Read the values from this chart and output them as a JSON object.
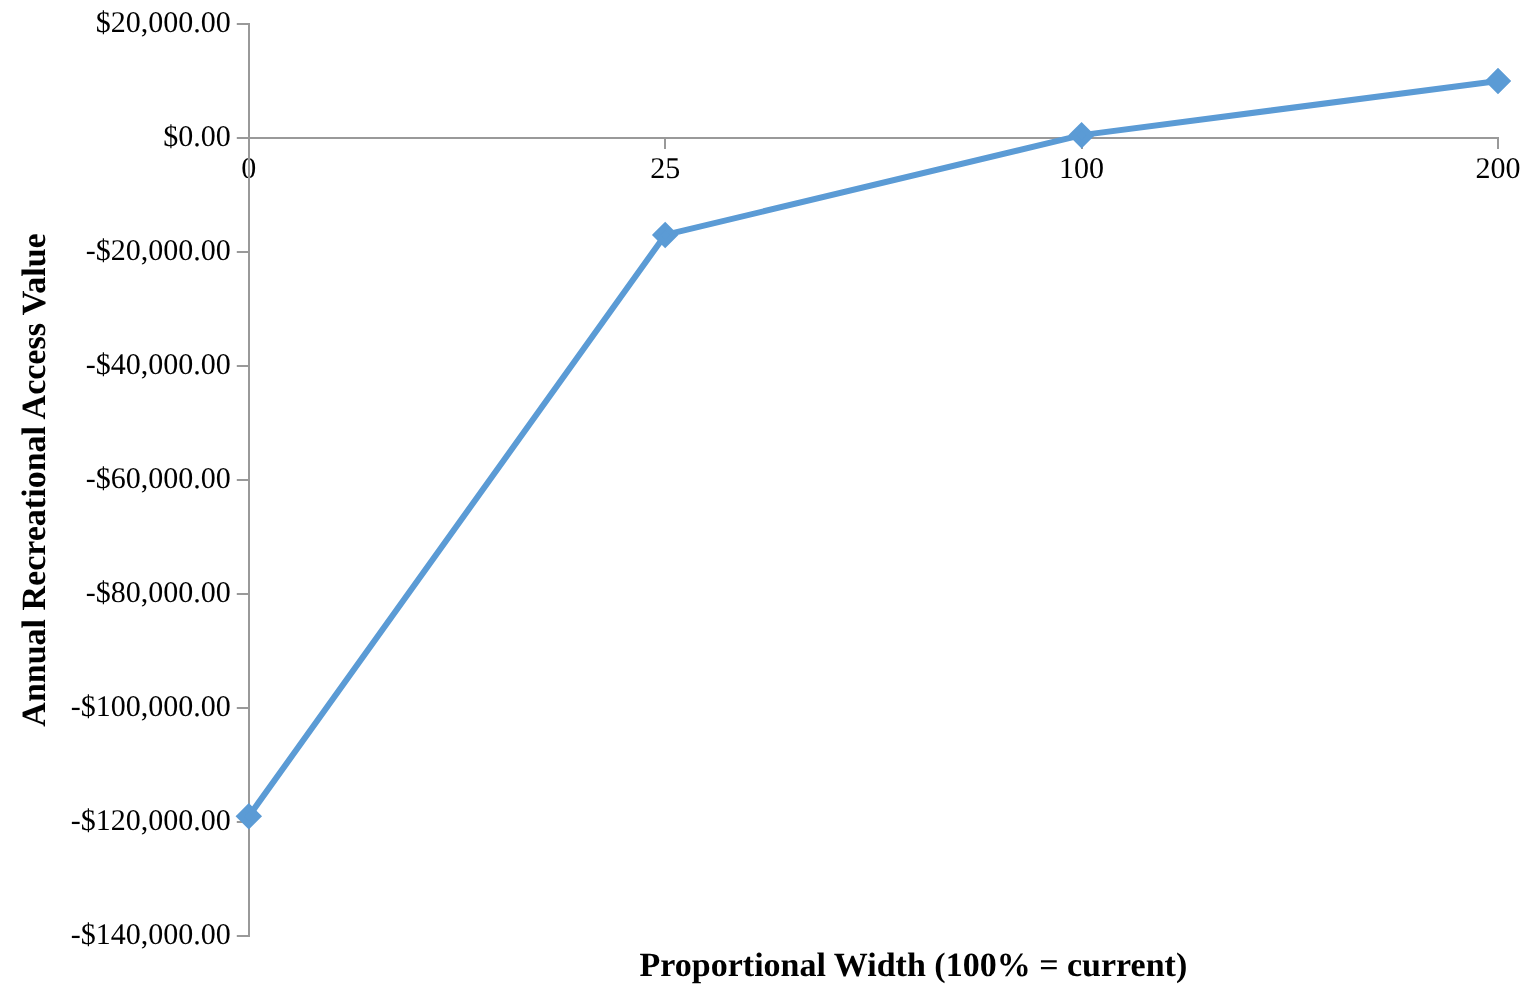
{
  "chart_data": {
    "type": "line",
    "xlabel": "Proportional Width (100% = current)",
    "ylabel": "Annual Recreational Access Value",
    "categories": [
      "0",
      "25",
      "100",
      "200"
    ],
    "series": [
      {
        "color": "#5b9bd5",
        "values": [
          -119000,
          -17000,
          500,
          10000
        ]
      }
    ],
    "ylim": [
      -140000,
      20000
    ],
    "yticks": [
      {
        "value": -140000,
        "label": "-$140,000.00"
      },
      {
        "value": -120000,
        "label": "-$120,000.00"
      },
      {
        "value": -100000,
        "label": "-$100,000.00"
      },
      {
        "value": -80000,
        "label": "-$80,000.00"
      },
      {
        "value": -60000,
        "label": "-$60,000.00"
      },
      {
        "value": -40000,
        "label": "-$40,000.00"
      },
      {
        "value": -20000,
        "label": "-$20,000.00"
      },
      {
        "value": 0,
        "label": "$0.00"
      },
      {
        "value": 20000,
        "label": "$20,000.00"
      }
    ],
    "grid": false,
    "legend": false,
    "marker": "diamond",
    "line_style": "solid"
  }
}
